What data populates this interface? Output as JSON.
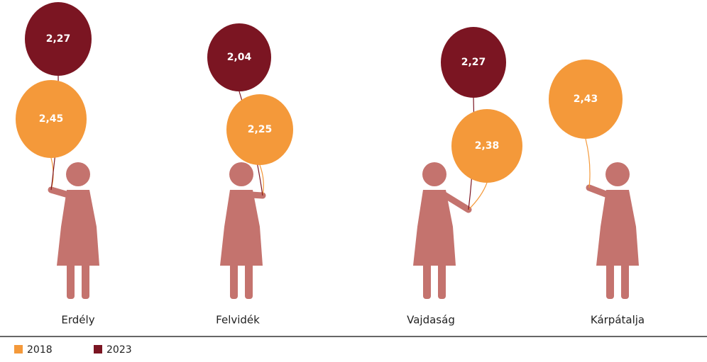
{
  "chart_data": {
    "type": "balloon",
    "categories": [
      "Erdély",
      "Felvidék",
      "Vajdaság",
      "Kárpátalja"
    ],
    "series": [
      {
        "name": "2018",
        "color": "#f4993a",
        "values": [
          2.45,
          2.25,
          2.38,
          2.43
        ],
        "value_labels": [
          "2,45",
          "2,25",
          "2,38",
          "2,43"
        ]
      },
      {
        "name": "2023",
        "color": "#7b1522",
        "values": [
          2.27,
          2.04,
          2.27,
          null
        ],
        "value_labels": [
          "2,27",
          "2,04",
          "2,27",
          null
        ]
      }
    ]
  }
}
